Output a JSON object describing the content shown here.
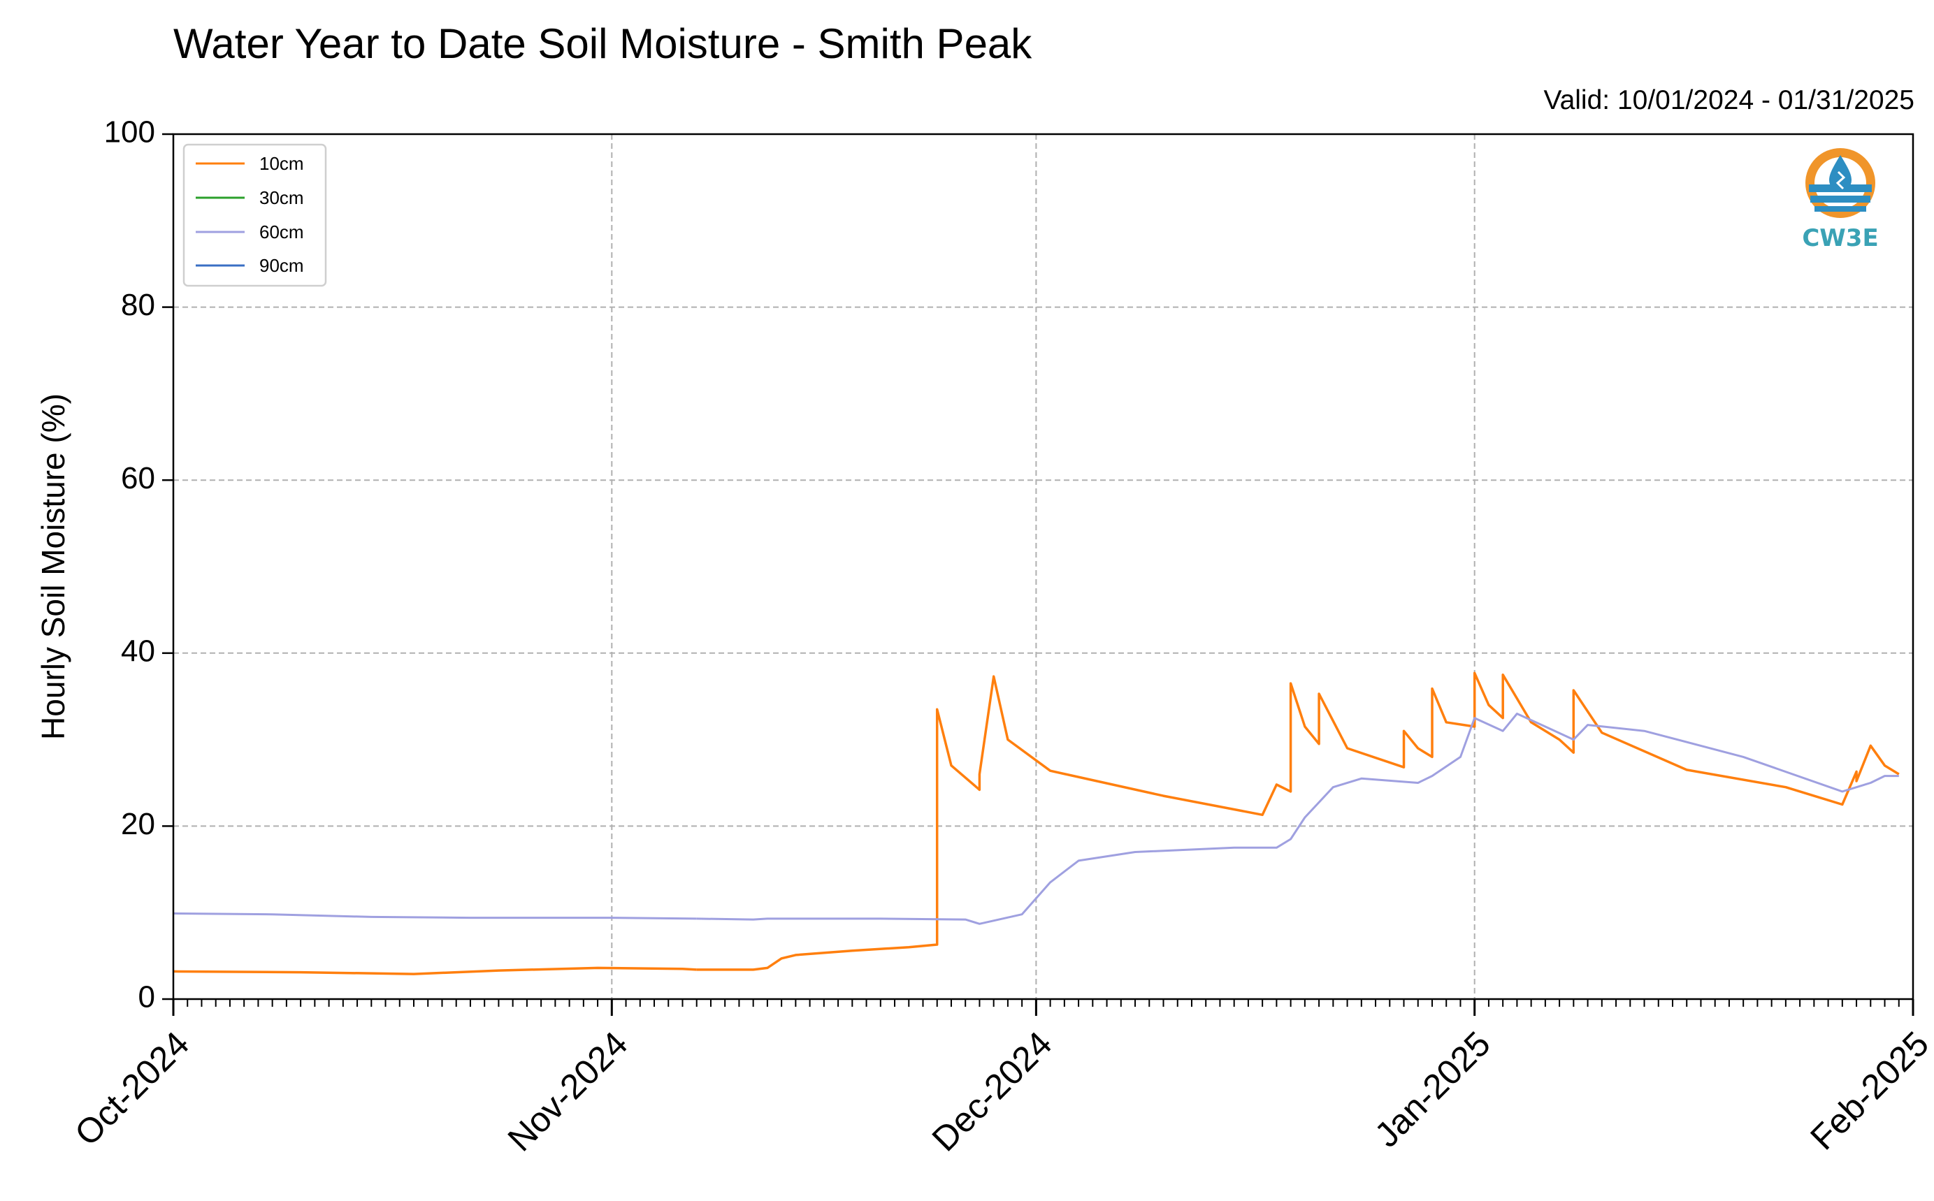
{
  "chart_data": {
    "type": "line",
    "title": "Water Year to Date Soil Moisture - Smith Peak",
    "subtitle": "Valid: 10/01/2024 - 01/31/2025",
    "xlabel": "",
    "ylabel": "Hourly Soil Moisture (%)",
    "xlim": [
      "2024-10-01",
      "2025-02-01"
    ],
    "ylim": [
      0,
      100
    ],
    "x_ticks": [
      "Oct-2024",
      "Nov-2024",
      "Dec-2024",
      "Jan-2025",
      "Feb-2025"
    ],
    "y_ticks": [
      "0",
      "20",
      "40",
      "60",
      "80",
      "100"
    ],
    "grid": true,
    "legend_position": "top-left",
    "series": [
      {
        "name": "10cm",
        "color": "#ff7f0e",
        "segments": [
          [
            [
              "2024-10-01",
              3.2
            ],
            [
              "2024-10-10",
              3.1
            ],
            [
              "2024-10-18",
              2.9
            ],
            [
              "2024-10-24",
              3.3
            ],
            [
              "2024-10-31",
              3.6
            ],
            [
              "2024-11-06",
              3.5
            ],
            [
              "2024-11-07",
              3.4
            ]
          ],
          [
            [
              "2024-11-07",
              3.4
            ],
            [
              "2024-11-11",
              3.4
            ],
            [
              "2024-11-12",
              3.6
            ],
            [
              "2024-11-13",
              4.7
            ],
            [
              "2024-11-14",
              5.1
            ],
            [
              "2024-11-18",
              5.6
            ],
            [
              "2024-11-22",
              6.0
            ],
            [
              "2024-11-24",
              6.3
            ],
            [
              "2024-11-24",
              33.5
            ],
            [
              "2024-11-25",
              27.0
            ],
            [
              "2024-11-27",
              24.2
            ],
            [
              "2024-11-27",
              26.0
            ],
            [
              "2024-11-28",
              37.3
            ],
            [
              "2024-11-29",
              30.0
            ],
            [
              "2024-12-02",
              26.4
            ],
            [
              "2024-12-10",
              23.5
            ],
            [
              "2024-12-17",
              21.3
            ],
            [
              "2024-12-18",
              24.8
            ],
            [
              "2024-12-19",
              24.0
            ],
            [
              "2024-12-19",
              36.5
            ],
            [
              "2024-12-20",
              31.5
            ],
            [
              "2024-12-21",
              29.5
            ],
            [
              "2024-12-21",
              35.3
            ],
            [
              "2024-12-23",
              29.0
            ],
            [
              "2024-12-27",
              26.8
            ],
            [
              "2024-12-27",
              31.0
            ],
            [
              "2024-12-28",
              29.0
            ],
            [
              "2024-12-29",
              28.0
            ],
            [
              "2024-12-29",
              35.9
            ],
            [
              "2024-12-30",
              32.0
            ],
            [
              "2025-01-01",
              31.5
            ],
            [
              "2025-01-01",
              37.7
            ],
            [
              "2025-01-02",
              34.0
            ],
            [
              "2025-01-03",
              32.5
            ],
            [
              "2025-01-03",
              37.5
            ],
            [
              "2025-01-05",
              32.0
            ],
            [
              "2025-01-07",
              30.0
            ],
            [
              "2025-01-08",
              28.5
            ],
            [
              "2025-01-08",
              35.7
            ],
            [
              "2025-01-10",
              30.8
            ],
            [
              "2025-01-16",
              26.5
            ],
            [
              "2025-01-23",
              24.5
            ],
            [
              "2025-01-27",
              22.5
            ],
            [
              "2025-01-28",
              26.3
            ],
            [
              "2025-01-28",
              25.2
            ],
            [
              "2025-01-29",
              29.3
            ],
            [
              "2025-01-30",
              27.0
            ],
            [
              "2025-01-31",
              26.0
            ]
          ]
        ]
      },
      {
        "name": "30cm",
        "color": "#2ca02c",
        "segments": []
      },
      {
        "name": "60cm",
        "color": "#9fa0e0",
        "segments": [
          [
            [
              "2024-10-01",
              9.9
            ],
            [
              "2024-10-08",
              9.8
            ],
            [
              "2024-10-15",
              9.5
            ],
            [
              "2024-10-22",
              9.4
            ],
            [
              "2024-11-01",
              9.4
            ],
            [
              "2024-11-07",
              9.3
            ]
          ],
          [
            [
              "2024-11-07",
              9.3
            ],
            [
              "2024-11-11",
              9.2
            ],
            [
              "2024-11-12",
              9.3
            ],
            [
              "2024-11-20",
              9.3
            ],
            [
              "2024-11-26",
              9.2
            ],
            [
              "2024-11-27",
              8.7
            ],
            [
              "2024-11-30",
              9.8
            ],
            [
              "2024-12-02",
              13.5
            ],
            [
              "2024-12-04",
              16.0
            ],
            [
              "2024-12-08",
              17.0
            ],
            [
              "2024-12-15",
              17.5
            ],
            [
              "2024-12-18",
              17.5
            ],
            [
              "2024-12-19",
              18.5
            ],
            [
              "2024-12-20",
              21.0
            ],
            [
              "2024-12-22",
              24.5
            ],
            [
              "2024-12-24",
              25.5
            ],
            [
              "2024-12-28",
              25.0
            ],
            [
              "2024-12-29",
              25.8
            ],
            [
              "2024-12-31",
              28.0
            ],
            [
              "2025-01-01",
              32.5
            ],
            [
              "2025-01-03",
              31.0
            ],
            [
              "2025-01-04",
              33.0
            ],
            [
              "2025-01-06",
              31.5
            ],
            [
              "2025-01-08",
              30.0
            ],
            [
              "2025-01-09",
              31.7
            ],
            [
              "2025-01-13",
              31.0
            ],
            [
              "2025-01-20",
              28.0
            ],
            [
              "2025-01-27",
              24.0
            ],
            [
              "2025-01-29",
              25.0
            ],
            [
              "2025-01-30",
              25.8
            ],
            [
              "2025-01-31",
              25.8
            ]
          ]
        ]
      },
      {
        "name": "90cm",
        "color": "#3a6fc4",
        "segments": []
      }
    ]
  },
  "logo": {
    "text": "CW3E",
    "colors": {
      "orange": "#f0952a",
      "blue": "#2d8ec2",
      "teal": "#3aa2b5"
    }
  }
}
